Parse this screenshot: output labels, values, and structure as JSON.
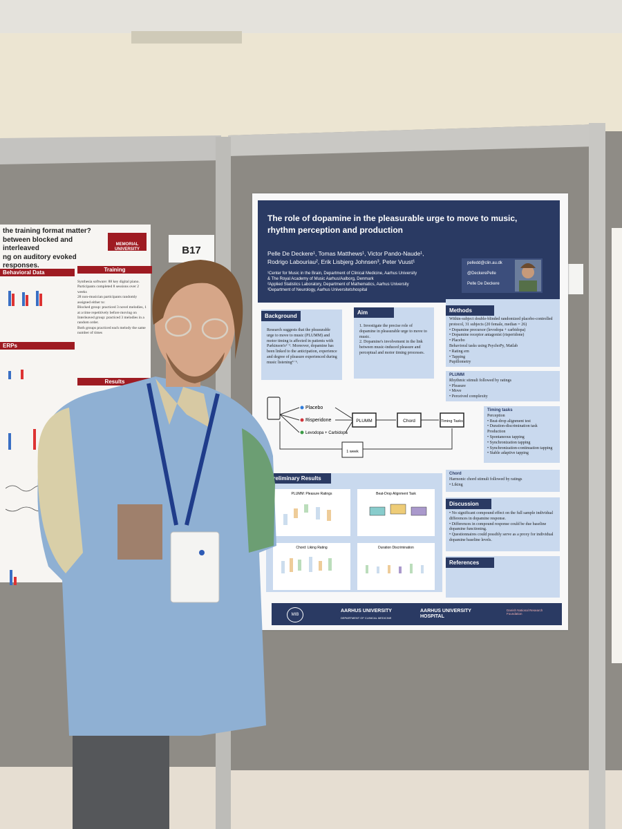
{
  "booth_label": "B17",
  "left_poster": {
    "title_lines": [
      "the training format matter?",
      "between blocked and interleaved",
      "ng on auditory evoked responses."
    ],
    "university": "MEMORIAL UNIVERSITY",
    "sections": [
      "Behavioral Data",
      "Training",
      "ERPs",
      "Results"
    ],
    "training_text": [
      "Synthesia software: 88 key digital piano.",
      "Participants completed 8 sessions over 2 weeks",
      "28 non-musician participants randomly assigned either to:",
      "Blocked group: practiced 3 novel melodies, 1 at a time repetitively before moving on",
      "Interleaved group: practiced 3 melodies in a random order.",
      "Both groups practiced each melody the same number of times"
    ]
  },
  "poster": {
    "title": "The role of dopamine in the pleasurable urge to move to music, rhythm perception and production",
    "authors": [
      "Pelle De Deckere¹, Tomas Matthews¹, Victor Pando-Naude¹,",
      "Rodrigo Labouriau², Erik Lisbjerg Johnsen³, Peter Vuust¹"
    ],
    "affiliations": [
      "¹Center for Music in the Brain, Department of Clinical Medicine, Aarhus University",
      "& The Royal Academy of Music Aarhus/Aalborg, Denmark",
      "²Applied Statistics Laboratory, Department of Mathematics, Aarhus University",
      "³Department of Neurology, Aarhus Universitetshospital"
    ],
    "contact": [
      "pelledd@clin.au.dk",
      "@DeckerePelle",
      "Pelle De Deckere"
    ],
    "background": {
      "heading": "Background",
      "text": "Research suggests that the pleasurable urge to move to music (PLUMM) and motor timing is affected in patients with Parkinson's¹⁻³. Moreover, dopamine has been linked to the anticipation, experience and degree of pleasure experienced during music listening⁴⁻⁶."
    },
    "aim": {
      "heading": "Aim",
      "items": [
        "1. Investigate the precise role of dopamine in pleasurable urge to move to music.",
        "2. Dopamine's involvement in the link between music-induced pleasure and perceptual and motor timing processes."
      ]
    },
    "methods": {
      "heading": "Methods",
      "lines": [
        "Within-subject double-blinded randomized placebo-controlled protocol, 31 subjects (20 female, median = 26)",
        "• Dopamine precursor (levodopa + carbidopa)",
        "• Dopamine receptor antagonist (risperidone)",
        "• Placebo",
        "Behavioral tasks using PsychoPy, Matlab",
        "• Rating ern",
        "• Tapping",
        "Pupillometry"
      ]
    },
    "diagram": {
      "drugs": [
        "Placebo",
        "Risperidone",
        "Levodopa + Carbidopa"
      ],
      "tasks": [
        "PLUMM",
        "Chord",
        "Timing Tasks"
      ],
      "interval": "1 week"
    },
    "plumm": {
      "heading": "PLUMM",
      "lines": [
        "Rhythmic stimuli followed by ratings",
        "• Pleasure",
        "• Move",
        "• Perceived complexity"
      ]
    },
    "timing": {
      "heading": "Timing tasks",
      "lines": [
        "Perception",
        "• Beat-drop alignment test",
        "• Duration-discrimination task",
        "Production",
        "• Spontaneous tapping",
        "• Synchronization tapping",
        "• Synchronization-continuation tapping",
        "• Stable adaptive tapping"
      ]
    },
    "chord": {
      "heading": "Chord",
      "lines": [
        "Harmonic chord stimuli followed by ratings",
        "• Liking"
      ]
    },
    "results": {
      "heading": "Preliminary Results",
      "plots": [
        "PLUMM: Pleasure Ratings",
        "Beat-Drop Alignment Task",
        "Chord: Liking Rating",
        "Duration Discrimination"
      ]
    },
    "discussion": {
      "heading": "Discussion",
      "lines": [
        "• No significant compound effect on the full sample individual differences in dopamine response.",
        "• Differences in compound response could be due baseline dopamine functioning.",
        "• Questionnaires could possibly serve as a proxy for individual dopamine baseline levels."
      ]
    },
    "references": {
      "heading": "References"
    },
    "footer": [
      "MIB",
      "AARHUS UNIVERSITY",
      "DEPARTMENT OF CLINICAL MEDICINE",
      "AARHUS UNIVERSITY HOSPITAL",
      "Danish National Research Foundation"
    ]
  }
}
